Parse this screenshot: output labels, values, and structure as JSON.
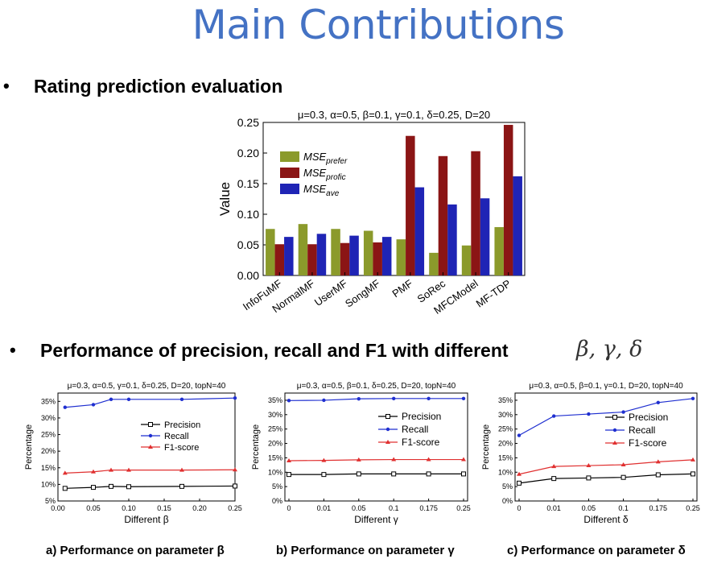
{
  "slide": {
    "title": "Main Contributions",
    "bullets": [
      {
        "marker": "•",
        "text": "Rating prediction evaluation"
      },
      {
        "marker": "•",
        "text": "Performance of precision, recall and F1 with different",
        "math": "β, γ, δ"
      }
    ],
    "captions": [
      "a) Performance on parameter β",
      "b) Performance on parameter γ",
      "c) Performance on parameter δ"
    ]
  },
  "chart_data": [
    {
      "type": "bar",
      "title": "μ=0.3, α=0.5, β=0.1, γ=0.1, δ=0.25, D=20",
      "xlabel": "",
      "ylabel": "Value",
      "ylim": [
        0,
        0.25
      ],
      "yticks": [
        "0.00",
        "0.05",
        "0.10",
        "0.15",
        "0.20",
        "0.25"
      ],
      "categories": [
        "InfoFuMF",
        "NormalMF",
        "UserMF",
        "SongMF",
        "PMF",
        "SoRec",
        "MFCModel",
        "MF-TDP"
      ],
      "series": [
        {
          "name": "MSE",
          "sub": "prefer",
          "color": "#8B9A2B",
          "values": [
            0.076,
            0.084,
            0.076,
            0.073,
            0.059,
            0.037,
            0.049,
            0.079
          ]
        },
        {
          "name": "MSE",
          "sub": "profic",
          "color": "#8B1515",
          "values": [
            0.051,
            0.051,
            0.053,
            0.054,
            0.228,
            0.195,
            0.203,
            0.246
          ]
        },
        {
          "name": "MSE",
          "sub": "ave",
          "color": "#1F24B5",
          "values": [
            0.063,
            0.068,
            0.065,
            0.063,
            0.144,
            0.116,
            0.126,
            0.162
          ]
        }
      ]
    },
    {
      "type": "line",
      "title": "μ=0.3, α=0.5, γ=0.1, δ=0.25, D=20, topN=40",
      "xlabel": "Different β",
      "ylabel": "Percentage",
      "xlim": [
        0,
        0.25
      ],
      "xticks": [
        "0.00",
        "0.05",
        "0.10",
        "0.15",
        "0.20",
        "0.25"
      ],
      "ylim": [
        5,
        37.5
      ],
      "yticks": [
        "5%",
        "10%",
        "15%",
        "20%",
        "25%",
        "30%",
        "35%"
      ],
      "x": [
        0.01,
        0.05,
        0.075,
        0.1,
        0.175,
        0.25
      ],
      "series": [
        {
          "name": "Precision",
          "color": "#000000",
          "values": [
            8.8,
            9.1,
            9.4,
            9.3,
            9.4,
            9.5
          ]
        },
        {
          "name": "Recall",
          "color": "#1F2FD0",
          "values": [
            33.2,
            34.0,
            35.6,
            35.6,
            35.6,
            36.0
          ]
        },
        {
          "name": "F1-score",
          "color": "#E03030",
          "values": [
            13.4,
            13.8,
            14.3,
            14.3,
            14.3,
            14.4
          ]
        }
      ]
    },
    {
      "type": "line",
      "title": "μ=0.3, α=0.5, β=0.1, δ=0.25, D=20, topN=40",
      "xlabel": "Different γ",
      "ylabel": "Percentage",
      "xticks": [
        "0",
        "0.01",
        "0.05",
        "0.1",
        "0.175",
        "0.25"
      ],
      "ylim": [
        0,
        37.5
      ],
      "yticks": [
        "0%",
        "5%",
        "10%",
        "15%",
        "20%",
        "25%",
        "30%",
        "35%"
      ],
      "series": [
        {
          "name": "Precision",
          "color": "#000000",
          "values": [
            9.2,
            9.2,
            9.4,
            9.4,
            9.4,
            9.4
          ]
        },
        {
          "name": "Recall",
          "color": "#1F2FD0",
          "values": [
            34.9,
            35.0,
            35.5,
            35.6,
            35.6,
            35.6
          ]
        },
        {
          "name": "F1-score",
          "color": "#E03030",
          "values": [
            14.0,
            14.1,
            14.3,
            14.4,
            14.4,
            14.4
          ]
        }
      ]
    },
    {
      "type": "line",
      "title": "μ=0.3, α=0.5, β=0.1, γ=0.1, D=20, topN=40",
      "xlabel": "Different δ",
      "ylabel": "Percentage",
      "xticks": [
        "0",
        "0.01",
        "0.05",
        "0.1",
        "0.175",
        "0.25"
      ],
      "ylim": [
        0,
        37.5
      ],
      "yticks": [
        "0%",
        "5%",
        "10%",
        "15%",
        "20%",
        "25%",
        "30%",
        "35%"
      ],
      "series": [
        {
          "name": "Precision",
          "color": "#000000",
          "values": [
            6.2,
            7.8,
            8.0,
            8.2,
            9.1,
            9.4
          ]
        },
        {
          "name": "Recall",
          "color": "#1F2FD0",
          "values": [
            22.8,
            29.5,
            30.2,
            30.9,
            34.2,
            35.6
          ]
        },
        {
          "name": "F1-score",
          "color": "#E03030",
          "values": [
            9.3,
            12.0,
            12.3,
            12.6,
            13.6,
            14.3
          ]
        }
      ]
    }
  ]
}
